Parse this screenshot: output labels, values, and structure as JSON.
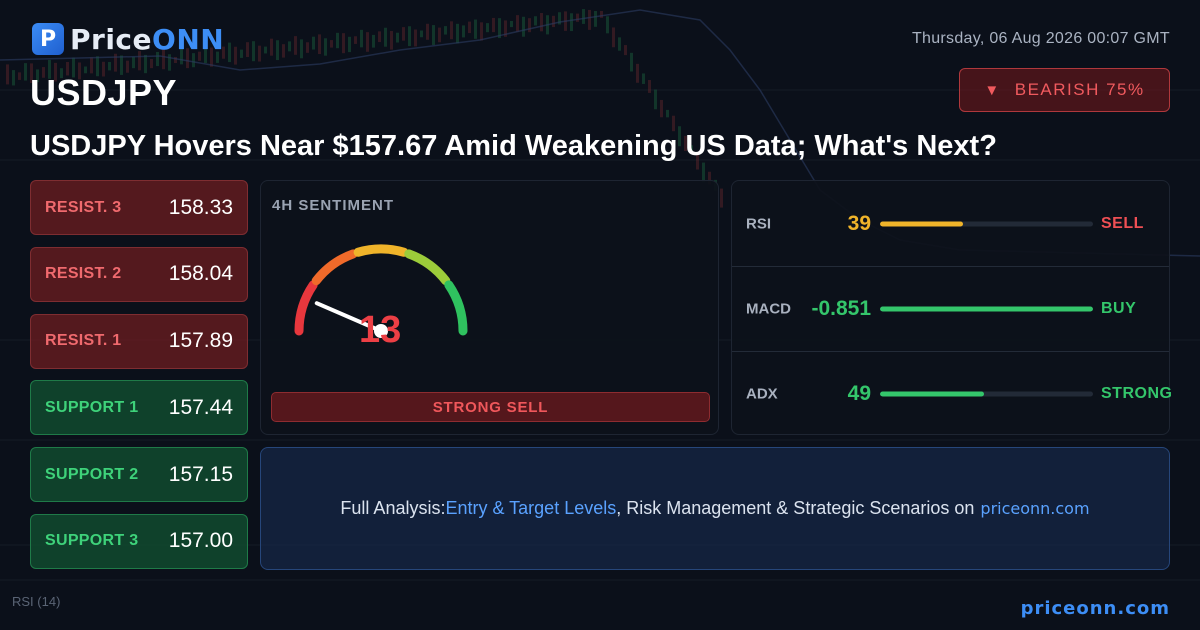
{
  "brand": {
    "name_part1": "Price",
    "name_part2": "ONN",
    "logo_letter": "P"
  },
  "datetime": "Thursday, 06 Aug 2026 00:07 GMT",
  "symbol": "USDJPY",
  "bias": {
    "label": "BEARISH 75%",
    "color": "#f05a5e"
  },
  "headline": "USDJPY Hovers Near $157.67 Amid Weakening US Data; What's Next?",
  "levels": [
    {
      "label": "RESIST. 3",
      "value": "158.33",
      "kind": "resistance"
    },
    {
      "label": "RESIST. 2",
      "value": "158.04",
      "kind": "resistance"
    },
    {
      "label": "RESIST. 1",
      "value": "157.89",
      "kind": "resistance"
    },
    {
      "label": "SUPPORT 1",
      "value": "157.44",
      "kind": "support"
    },
    {
      "label": "SUPPORT 2",
      "value": "157.15",
      "kind": "support"
    },
    {
      "label": "SUPPORT 3",
      "value": "157.00",
      "kind": "support"
    }
  ],
  "sentiment": {
    "title": "4H SENTIMENT",
    "value": 13,
    "display": "13",
    "label": "STRONG SELL"
  },
  "indicators": [
    {
      "name": "RSI",
      "value": "39",
      "level": 39,
      "signal": "SELL",
      "value_color": "#f0b42a",
      "fill_color": "#f0b42a",
      "signal_color": "#ef4f54"
    },
    {
      "name": "MACD",
      "value": "-0.851",
      "level": 100,
      "signal": "BUY",
      "value_color": "#34c66b",
      "fill_color": "#34c66b",
      "signal_color": "#34c66b"
    },
    {
      "name": "ADX",
      "value": "49",
      "level": 49,
      "signal": "STRONG",
      "value_color": "#34c66b",
      "fill_color": "#34c66b",
      "signal_color": "#34c66b"
    }
  ],
  "cta": {
    "prefix": "Full Analysis: ",
    "highlight": "Entry & Target Levels",
    "middle": ", Risk Management & Strategic Scenarios on ",
    "site": "priceonn.com"
  },
  "footer_url": "priceonn.com",
  "background": {
    "rsi_label": "RSI",
    "rsi_period": "(14)"
  }
}
